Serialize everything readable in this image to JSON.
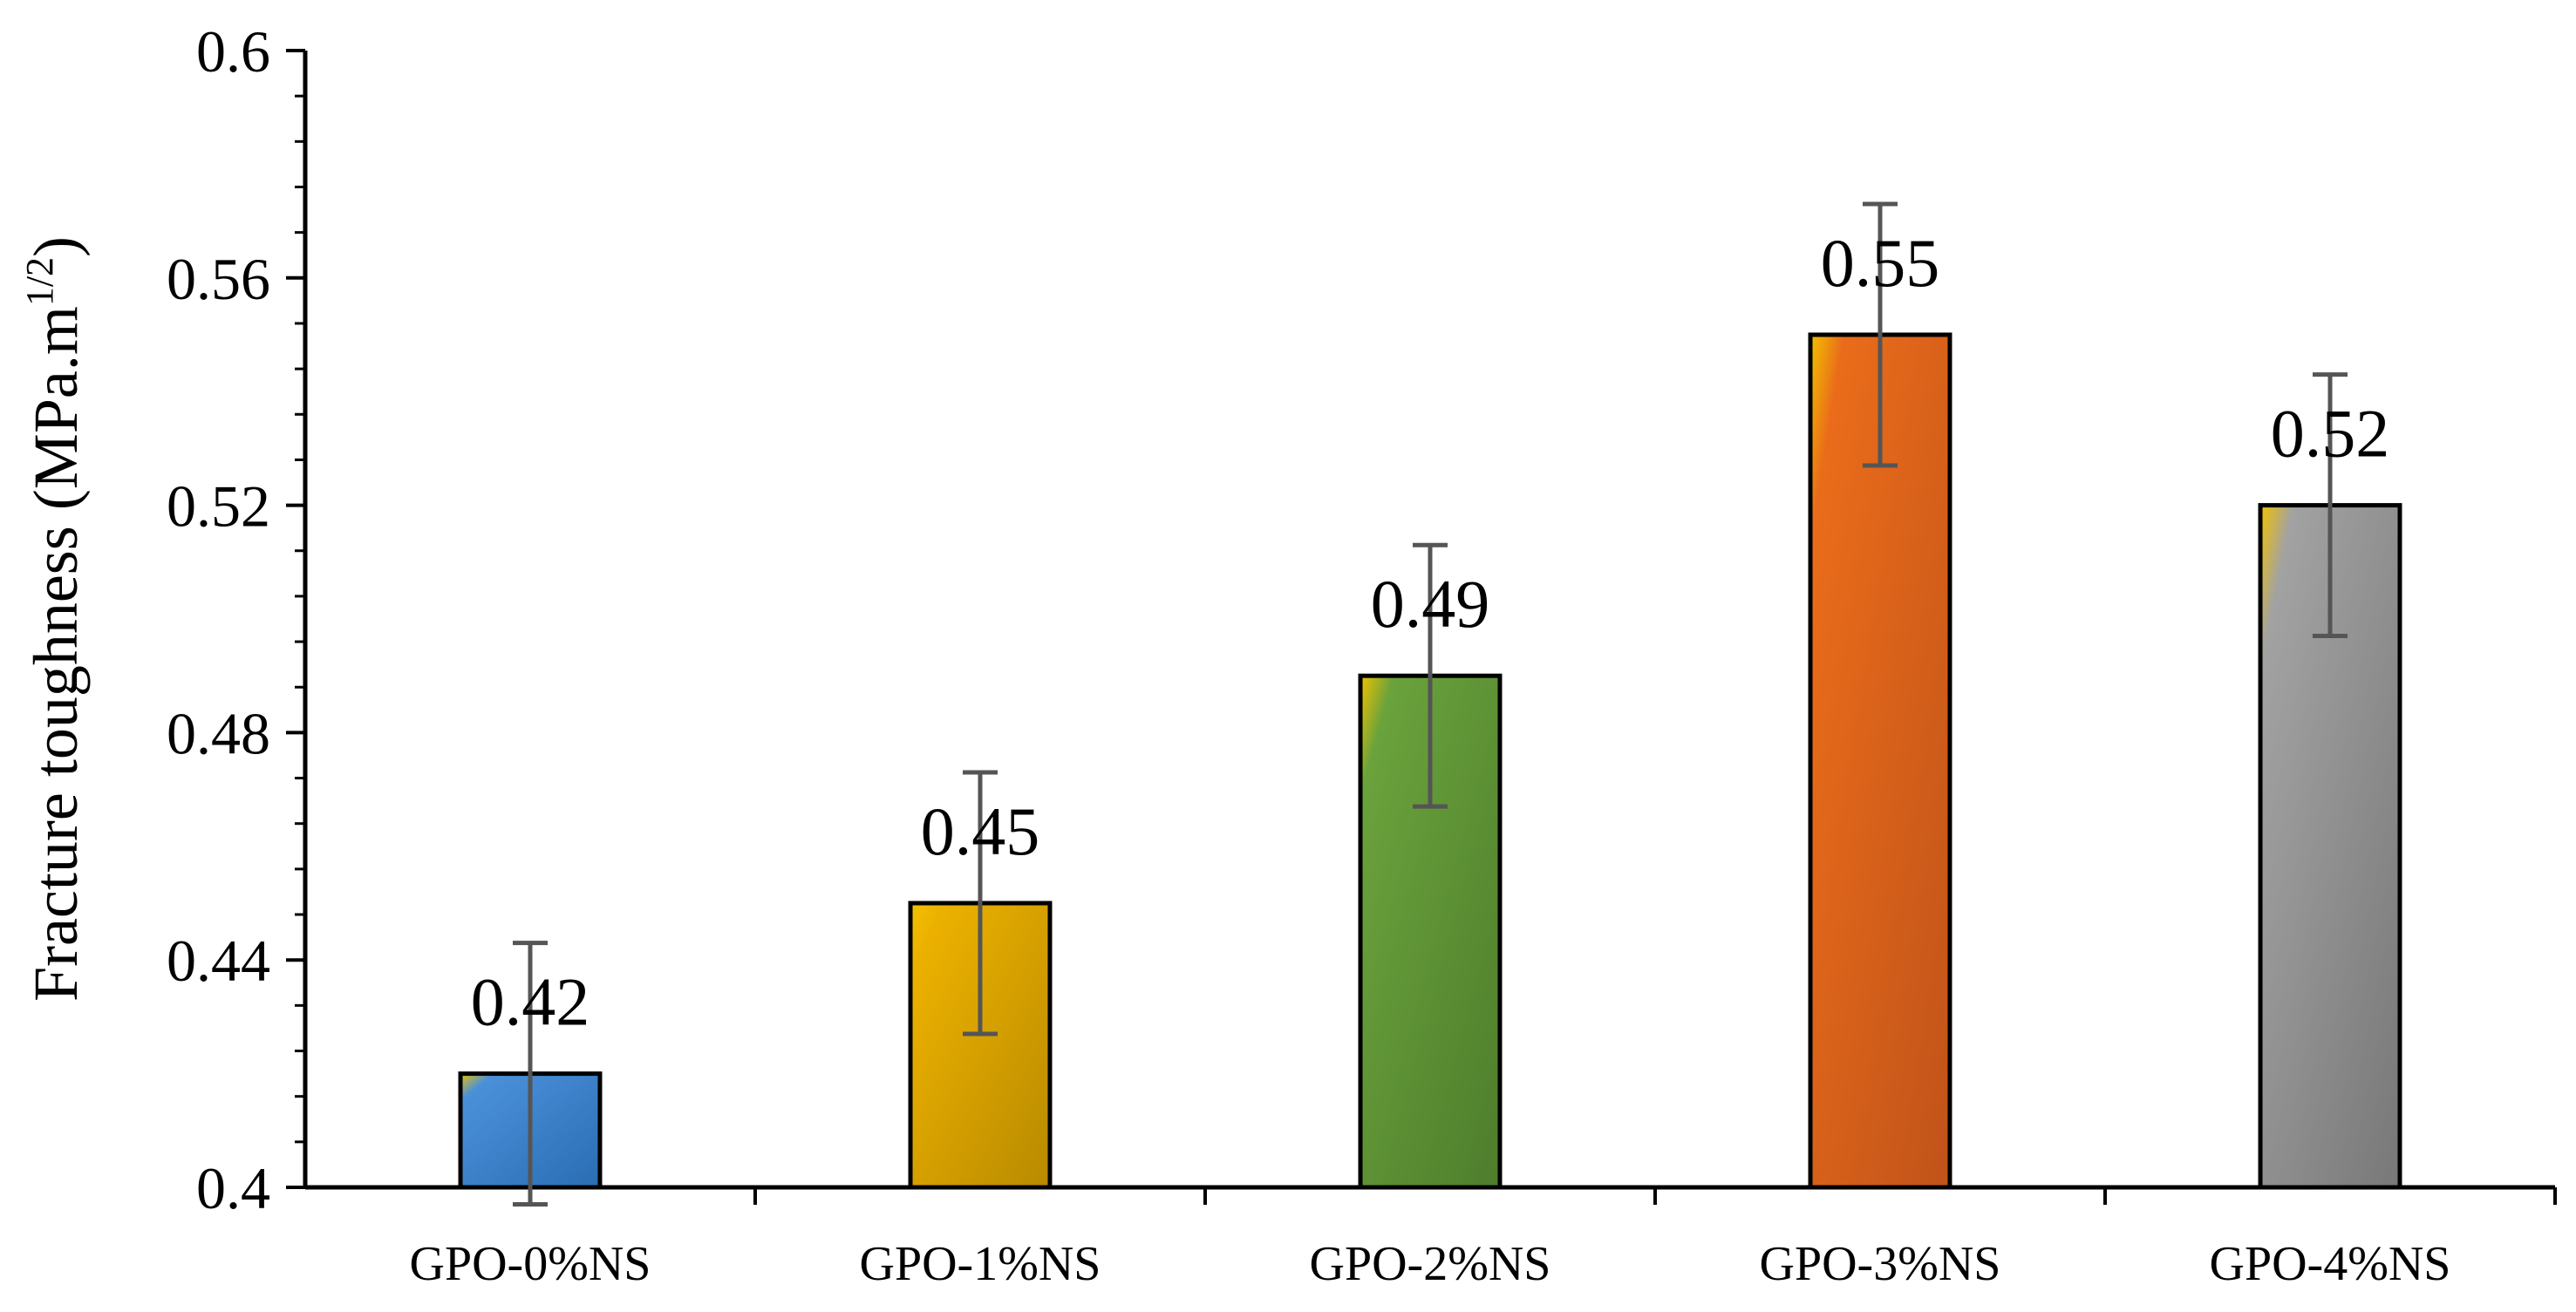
{
  "chart_data": {
    "type": "bar",
    "title": "",
    "xlabel": "",
    "ylabel": "Fracture toughness (MPa.m",
    "ylabel_superscript": "1/2",
    "ylabel_suffix": ")",
    "ylim": [
      0.4,
      0.6
    ],
    "y_ticks": [
      0.4,
      0.44,
      0.48,
      0.52,
      0.56,
      0.6
    ],
    "y_tick_labels": [
      "0.4",
      "0.44",
      "0.48",
      "0.52",
      "0.56",
      "0.6"
    ],
    "categories": [
      "GPO-0%NS",
      "GPO-1%NS",
      "GPO-2%NS",
      "GPO-3%NS",
      "GPO-4%NS"
    ],
    "values": [
      0.42,
      0.45,
      0.49,
      0.55,
      0.52
    ],
    "value_labels": [
      "0.42",
      "0.45",
      "0.49",
      "0.55",
      "0.52"
    ],
    "error": [
      0.023,
      0.023,
      0.023,
      0.023,
      0.023
    ],
    "bar_colors": [
      {
        "light": "#4a90d9",
        "dark": "#2a6db3"
      },
      {
        "light": "#ecb100",
        "dark": "#b88a00"
      },
      {
        "light": "#6aa23c",
        "dark": "#4e7d2c"
      },
      {
        "light": "#ea6c1a",
        "dark": "#c0531a"
      },
      {
        "light": "#a2a2a2",
        "dark": "#787878"
      }
    ],
    "highlight_color": "#f2c200",
    "error_bar_color": "#555555",
    "grid": false,
    "legend": "none"
  }
}
